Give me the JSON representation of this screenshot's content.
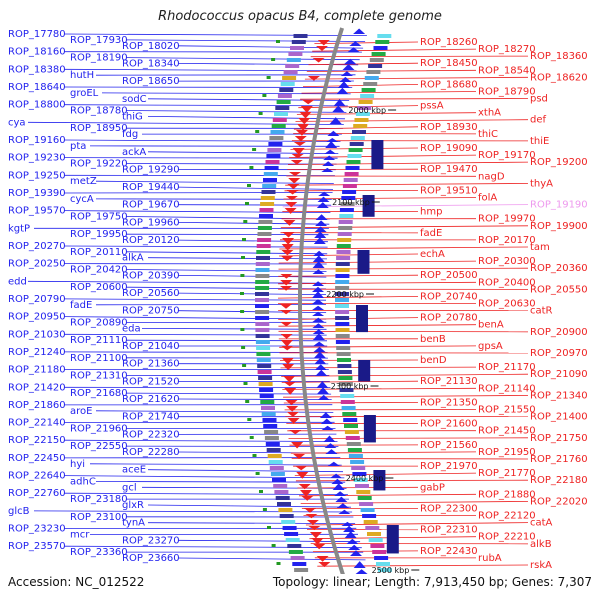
{
  "title": "Rhodococcus opacus B4, complete genome",
  "footer": {
    "accession": "Accession: NC_012522",
    "topology": "Topology: linear; Length: 7,913,450 bp; Genes: 7,307"
  },
  "colors": {
    "reverse_strand": "#2222ee",
    "forward_strand": "#ee2222",
    "backbone": "#888888",
    "highlight_label": "#ee99ee",
    "tick_mark": "#229922"
  },
  "ticks": [
    "2000 kbp",
    "2100 kbp",
    "2200 kbp",
    "2300 kbp",
    "2400 kbp",
    "2500 kbp"
  ],
  "left_labels": [
    "ROP_17780",
    "ROP_17930",
    "ROP_18020",
    "ROP_18160",
    "ROP_18190",
    "ROP_18340",
    "ROP_18380",
    "hutH",
    "ROP_18650",
    "ROP_18640",
    "groEL",
    "sodC",
    "ROP_18800",
    "ROP_18780",
    "thiG",
    "cya",
    "ROP_18950",
    "fdg",
    "ROP_19160",
    "pta",
    "ackA",
    "ROP_19230",
    "ROP_19220",
    "ROP_19290",
    "ROP_19250",
    "metZ",
    "ROP_19440",
    "ROP_19390",
    "cycA",
    "ROP_19670",
    "ROP_19570",
    "ROP_19750",
    "ROP_19960",
    "kgtP",
    "ROP_19950",
    "ROP_20120",
    "ROP_20270",
    "ROP_20110",
    "alkA",
    "ROP_20250",
    "ROP_20420",
    "ROP_20390",
    "edd",
    "ROP_20600",
    "ROP_20560",
    "ROP_20790",
    "fadE",
    "ROP_20750",
    "ROP_20950",
    "ROP_20890",
    "eda",
    "ROP_21030",
    "ROP_21110",
    "ROP_21040",
    "ROP_21240",
    "ROP_21100",
    "ROP_21360",
    "ROP_21180",
    "ROP_21310",
    "ROP_21520",
    "ROP_21420",
    "ROP_21680",
    "ROP_21620",
    "ROP_21860",
    "aroE",
    "ROP_21740",
    "ROP_22140",
    "ROP_21960",
    "ROP_22320",
    "ROP_22150",
    "ROP_22550",
    "ROP_22280",
    "ROP_22450",
    "hyi",
    "aceE",
    "ROP_22640",
    "adhC",
    "gcl",
    "ROP_22760",
    "ROP_23180",
    "glxR",
    "glcB",
    "ROP_23100",
    "tynA",
    "ROP_23230",
    "mcr",
    "ROP_23270",
    "ROP_23570",
    "ROP_23360",
    "ROP_23660"
  ],
  "right_labels": [
    "ROP_18260",
    "ROP_18270",
    "ROP_18360",
    "ROP_18450",
    "ROP_18540",
    "ROP_18620",
    "ROP_18680",
    "ROP_18790",
    "psd",
    "pssA",
    "xthA",
    "def",
    "ROP_18930",
    "thiC",
    "thiE",
    "ROP_19090",
    "ROP_19170",
    "ROP_19200",
    "ROP_19470",
    "nagD",
    "thyA",
    "ROP_19510",
    "folA",
    "ROP_19190",
    "hmp",
    "ROP_19970",
    "ROP_19900",
    "fadE",
    "ROP_20170",
    "tam",
    "echA",
    "ROP_20300",
    "ROP_20360",
    "ROP_20500",
    "ROP_20400",
    "ROP_20550",
    "ROP_20740",
    "ROP_20630",
    "catR",
    "ROP_20780",
    "benA",
    "ROP_20900",
    "benB",
    "gpsA",
    "ROP_20970",
    "benD",
    "ROP_21170",
    "ROP_21090",
    "ROP_21130",
    "ROP_21140",
    "ROP_21340",
    "ROP_21350",
    "ROP_21550",
    "ROP_21400",
    "ROP_21600",
    "ROP_21450",
    "ROP_21750",
    "ROP_21560",
    "ROP_21950",
    "ROP_21760",
    "ROP_21970",
    "ROP_21770",
    "ROP_22180",
    "gabP",
    "ROP_21880",
    "ROP_22020",
    "ROP_22300",
    "ROP_22120",
    "catA",
    "ROP_22310",
    "ROP_22210",
    "alkB",
    "ROP_22430",
    "rubA",
    "rskA"
  ]
}
